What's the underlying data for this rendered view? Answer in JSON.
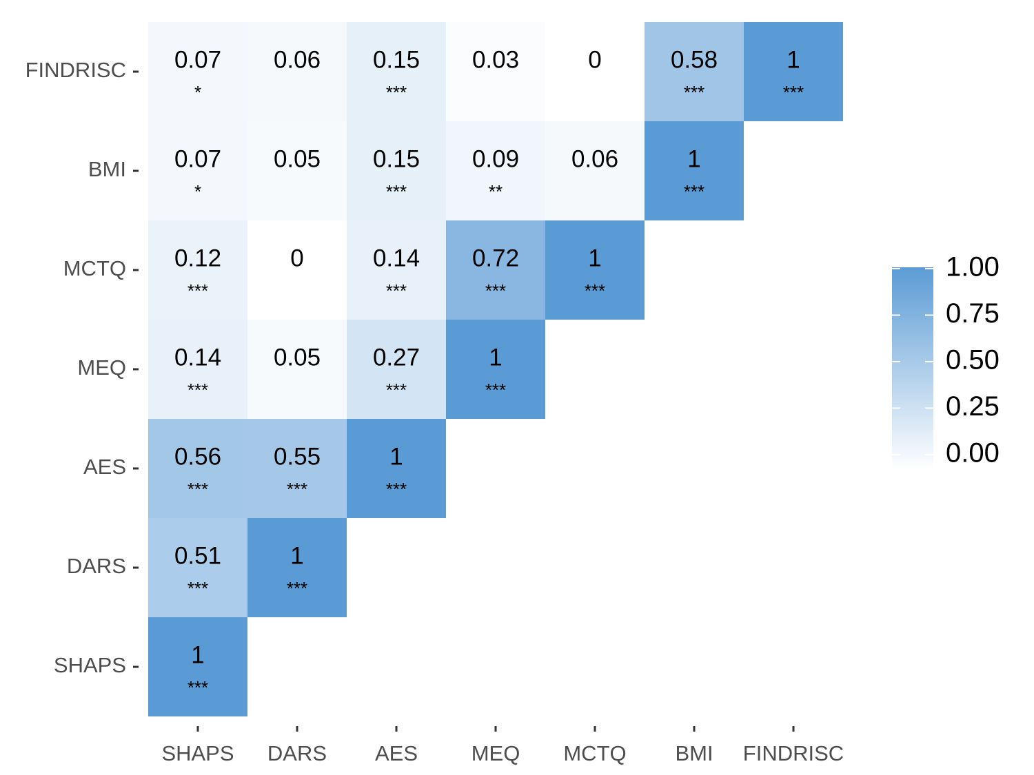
{
  "chart_data": {
    "type": "heatmap",
    "variables": [
      "SHAPS",
      "DARS",
      "AES",
      "MEQ",
      "MCTQ",
      "BMI",
      "FINDRISC"
    ],
    "cells": [
      {
        "x": "SHAPS",
        "y": "SHAPS",
        "label": "1",
        "value": 1,
        "sig": "***"
      },
      {
        "x": "SHAPS",
        "y": "DARS",
        "label": "0.51",
        "value": 0.51,
        "sig": "***"
      },
      {
        "x": "SHAPS",
        "y": "AES",
        "label": "0.56",
        "value": 0.56,
        "sig": "***"
      },
      {
        "x": "SHAPS",
        "y": "MEQ",
        "label": "0.14",
        "value": 0.14,
        "sig": "***"
      },
      {
        "x": "SHAPS",
        "y": "MCTQ",
        "label": "0.12",
        "value": 0.12,
        "sig": "***"
      },
      {
        "x": "SHAPS",
        "y": "BMI",
        "label": "0.07",
        "value": 0.07,
        "sig": "*"
      },
      {
        "x": "SHAPS",
        "y": "FINDRISC",
        "label": "0.07",
        "value": 0.07,
        "sig": "*"
      },
      {
        "x": "DARS",
        "y": "DARS",
        "label": "1",
        "value": 1,
        "sig": "***"
      },
      {
        "x": "DARS",
        "y": "AES",
        "label": "0.55",
        "value": 0.55,
        "sig": "***"
      },
      {
        "x": "DARS",
        "y": "MEQ",
        "label": "0.05",
        "value": 0.05,
        "sig": ""
      },
      {
        "x": "DARS",
        "y": "MCTQ",
        "label": "0",
        "value": 0,
        "sig": ""
      },
      {
        "x": "DARS",
        "y": "BMI",
        "label": "0.05",
        "value": 0.05,
        "sig": ""
      },
      {
        "x": "DARS",
        "y": "FINDRISC",
        "label": "0.06",
        "value": 0.06,
        "sig": ""
      },
      {
        "x": "AES",
        "y": "AES",
        "label": "1",
        "value": 1,
        "sig": "***"
      },
      {
        "x": "AES",
        "y": "MEQ",
        "label": "0.27",
        "value": 0.27,
        "sig": "***"
      },
      {
        "x": "AES",
        "y": "MCTQ",
        "label": "0.14",
        "value": 0.14,
        "sig": "***"
      },
      {
        "x": "AES",
        "y": "BMI",
        "label": "0.15",
        "value": 0.15,
        "sig": "***"
      },
      {
        "x": "AES",
        "y": "FINDRISC",
        "label": "0.15",
        "value": 0.15,
        "sig": "***"
      },
      {
        "x": "MEQ",
        "y": "MEQ",
        "label": "1",
        "value": 1,
        "sig": "***"
      },
      {
        "x": "MEQ",
        "y": "MCTQ",
        "label": "0.72",
        "value": 0.72,
        "sig": "***"
      },
      {
        "x": "MEQ",
        "y": "BMI",
        "label": "0.09",
        "value": 0.09,
        "sig": "**"
      },
      {
        "x": "MEQ",
        "y": "FINDRISC",
        "label": "0.03",
        "value": 0.03,
        "sig": ""
      },
      {
        "x": "MCTQ",
        "y": "MCTQ",
        "label": "1",
        "value": 1,
        "sig": "***"
      },
      {
        "x": "MCTQ",
        "y": "BMI",
        "label": "0.06",
        "value": 0.06,
        "sig": ""
      },
      {
        "x": "MCTQ",
        "y": "FINDRISC",
        "label": "0",
        "value": 0,
        "sig": ""
      },
      {
        "x": "BMI",
        "y": "BMI",
        "label": "1",
        "value": 1,
        "sig": "***"
      },
      {
        "x": "BMI",
        "y": "FINDRISC",
        "label": "0.58",
        "value": 0.58,
        "sig": "***"
      },
      {
        "x": "FINDRISC",
        "y": "FINDRISC",
        "label": "1",
        "value": 1,
        "sig": "***"
      }
    ],
    "color_scale": {
      "low": "#ffffff",
      "high": "#5b9bd5",
      "min": 0,
      "max": 1
    },
    "legend": {
      "position": "right",
      "ticks": [
        "1.00",
        "0.75",
        "0.50",
        "0.25",
        "0.00"
      ],
      "tick_values": [
        1,
        0.75,
        0.5,
        0.25,
        0
      ]
    },
    "title": "",
    "xlabel": "",
    "ylabel": "",
    "grid": false
  }
}
